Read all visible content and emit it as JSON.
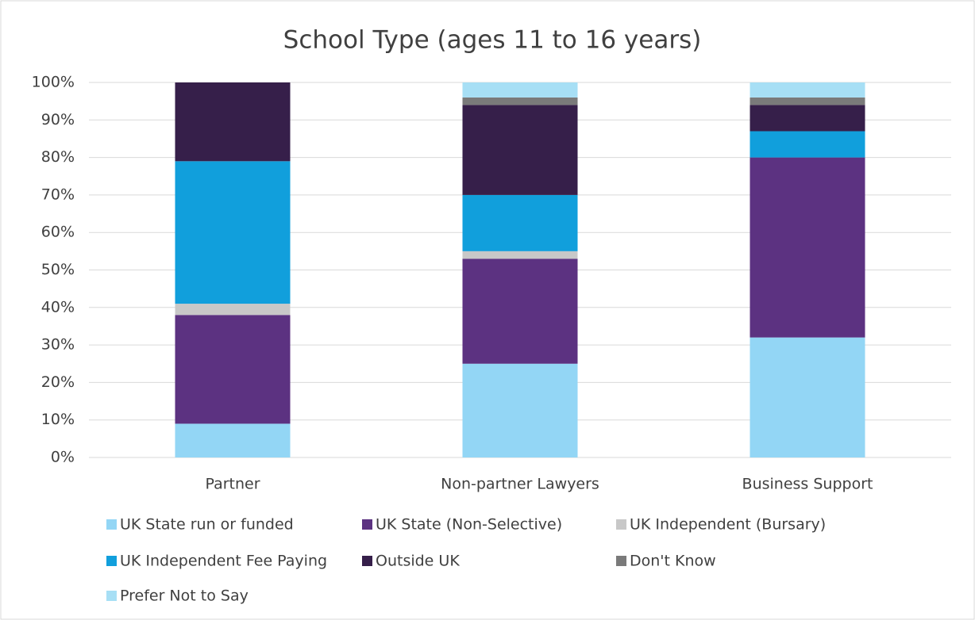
{
  "chart_data": {
    "type": "stacked_bar",
    "title": "School Type (ages 11 to 16 years)",
    "categories": [
      "Partner",
      "Non-partner Lawyers",
      "Business Support"
    ],
    "series": [
      {
        "name": "UK State run or funded",
        "color": "#93d6f5",
        "values": [
          9,
          25,
          32
        ]
      },
      {
        "name": "UK State (Non-Selective)",
        "color": "#5c3281",
        "values": [
          29,
          28,
          48
        ]
      },
      {
        "name": "UK Independent (Bursary)",
        "color": "#c8c8c8",
        "values": [
          3,
          2,
          0
        ]
      },
      {
        "name": "UK Independent Fee Paying",
        "color": "#119fdc",
        "values": [
          38,
          15,
          7
        ]
      },
      {
        "name": "Outside UK",
        "color": "#361f4a",
        "values": [
          21,
          24,
          7
        ]
      },
      {
        "name": "Don't Know",
        "color": "#7a7a7a",
        "values": [
          0,
          2,
          2
        ]
      },
      {
        "name": "Prefer Not to Say",
        "color": "#a7dff5",
        "values": [
          0,
          4,
          4
        ]
      }
    ],
    "ylim": [
      0,
      100
    ],
    "yticks": [
      {
        "value": 0,
        "label": "0%"
      },
      {
        "value": 10,
        "label": "10%"
      },
      {
        "value": 20,
        "label": "20%"
      },
      {
        "value": 30,
        "label": "30%"
      },
      {
        "value": 40,
        "label": "40%"
      },
      {
        "value": 50,
        "label": "50%"
      },
      {
        "value": 60,
        "label": "60%"
      },
      {
        "value": 70,
        "label": "70%"
      },
      {
        "value": 80,
        "label": "80%"
      },
      {
        "value": 90,
        "label": "90%"
      },
      {
        "value": 100,
        "label": "100%"
      }
    ],
    "grid": true,
    "legend": "bottom"
  }
}
